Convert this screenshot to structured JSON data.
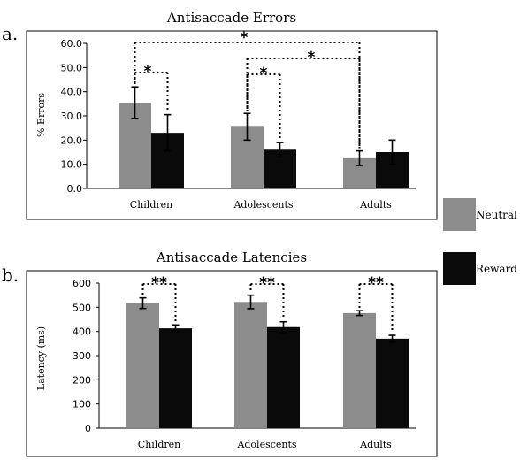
{
  "legend": {
    "neutral_label": "Neutral",
    "reward_label": "Reward"
  },
  "colors": {
    "neutral": "#8c8c8c",
    "reward": "#0a0a0a"
  },
  "chart_data": [
    {
      "type": "bar",
      "panel": "a.",
      "title": "Antisaccade Errors",
      "ylabel": "% Errors",
      "xlabel": "",
      "categories": [
        "Children",
        "Adolescents",
        "Adults"
      ],
      "ylim": [
        0,
        60
      ],
      "yticks": [
        "0.0",
        "10.0",
        "20.0",
        "30.0",
        "40.0",
        "50.0",
        "60.0"
      ],
      "series": [
        {
          "name": "Neutral",
          "values": [
            35.5,
            25.5,
            12.5
          ],
          "errors": [
            6.5,
            5.5,
            3.0
          ]
        },
        {
          "name": "Reward",
          "values": [
            23.0,
            16.0,
            15.0
          ],
          "errors": [
            7.5,
            3.0,
            5.0
          ]
        }
      ],
      "significance": [
        {
          "label": "*",
          "from": "Children Neutral",
          "to": "Children Reward"
        },
        {
          "label": "*",
          "from": "Adolescents Neutral",
          "to": "Adolescents Reward"
        },
        {
          "label": "*",
          "from": "Adolescents Neutral",
          "to": "Adults Neutral"
        },
        {
          "label": "*",
          "from": "Children Neutral",
          "to": "Adults Neutral"
        }
      ]
    },
    {
      "type": "bar",
      "panel": "b.",
      "title": "Antisaccade Latencies",
      "ylabel": "Latency (ms)",
      "xlabel": "",
      "categories": [
        "Children",
        "Adolescents",
        "Adults"
      ],
      "ylim": [
        0,
        600
      ],
      "yticks": [
        "0",
        "100",
        "200",
        "300",
        "400",
        "500",
        "600"
      ],
      "series": [
        {
          "name": "Neutral",
          "values": [
            517,
            522,
            476
          ],
          "errors": [
            22,
            28,
            10
          ]
        },
        {
          "name": "Reward",
          "values": [
            413,
            418,
            370
          ],
          "errors": [
            14,
            22,
            14
          ]
        }
      ],
      "significance": [
        {
          "label": "**",
          "from": "Children Neutral",
          "to": "Children Reward"
        },
        {
          "label": "**",
          "from": "Adolescents Neutral",
          "to": "Adolescents Reward"
        },
        {
          "label": "**",
          "from": "Adults Neutral",
          "to": "Adults Reward"
        }
      ]
    }
  ]
}
